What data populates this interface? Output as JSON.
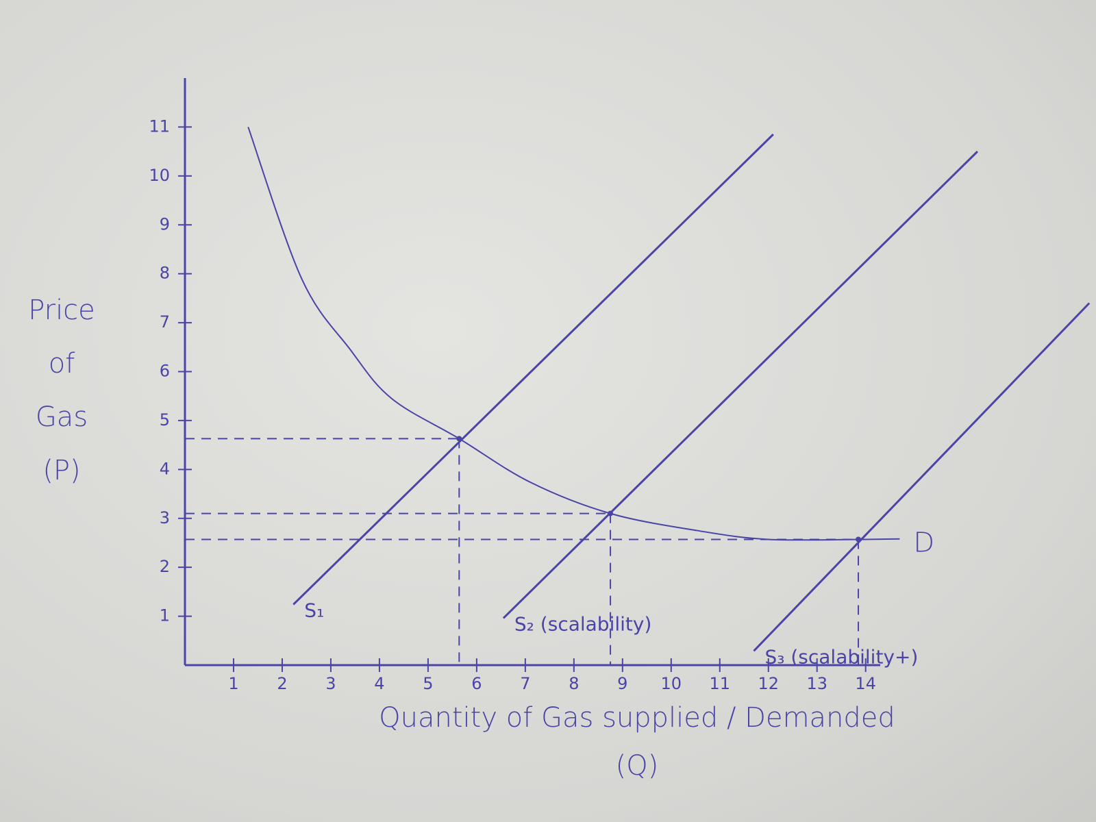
{
  "chart_data": {
    "type": "line",
    "xlabel": [
      "Quantity of Gas supplied / Demanded",
      "(Q)"
    ],
    "ylabel": [
      "Price",
      "of",
      "Gas",
      "(P)"
    ],
    "xlim": [
      0,
      14.3
    ],
    "ylim": [
      0,
      12
    ],
    "xticks": [
      1,
      2,
      3,
      4,
      5,
      6,
      7,
      8,
      9,
      10,
      11,
      12,
      13,
      14
    ],
    "yticks": [
      1,
      2,
      3,
      4,
      5,
      6,
      7,
      8,
      9,
      10,
      11
    ],
    "color": "#4a44a6",
    "series": [
      {
        "name": "D",
        "smooth": true,
        "x": [
          1.3,
          2.4,
          3.4,
          4.25,
          5.64,
          7.1,
          8.75,
          10.6,
          12.0,
          13.85,
          14.7
        ],
        "y": [
          11,
          7.9,
          6.45,
          5.45,
          4.63,
          3.74,
          3.1,
          2.74,
          2.57,
          2.57,
          2.58
        ]
      },
      {
        "name": "S₁",
        "x": [
          2.23,
          12.1
        ],
        "y": [
          1.24,
          10.85
        ]
      },
      {
        "name": "S₂ (scalability)",
        "x": [
          6.55,
          16.3
        ],
        "y": [
          0.96,
          10.5
        ]
      },
      {
        "name": "S₃ (scalability+)",
        "x": [
          11.7,
          18.6
        ],
        "y": [
          0.29,
          7.4
        ]
      }
    ],
    "equilibria": [
      {
        "x": 5.64,
        "y": 4.63
      },
      {
        "x": 8.75,
        "y": 3.1
      },
      {
        "x": 13.85,
        "y": 2.57
      }
    ]
  }
}
